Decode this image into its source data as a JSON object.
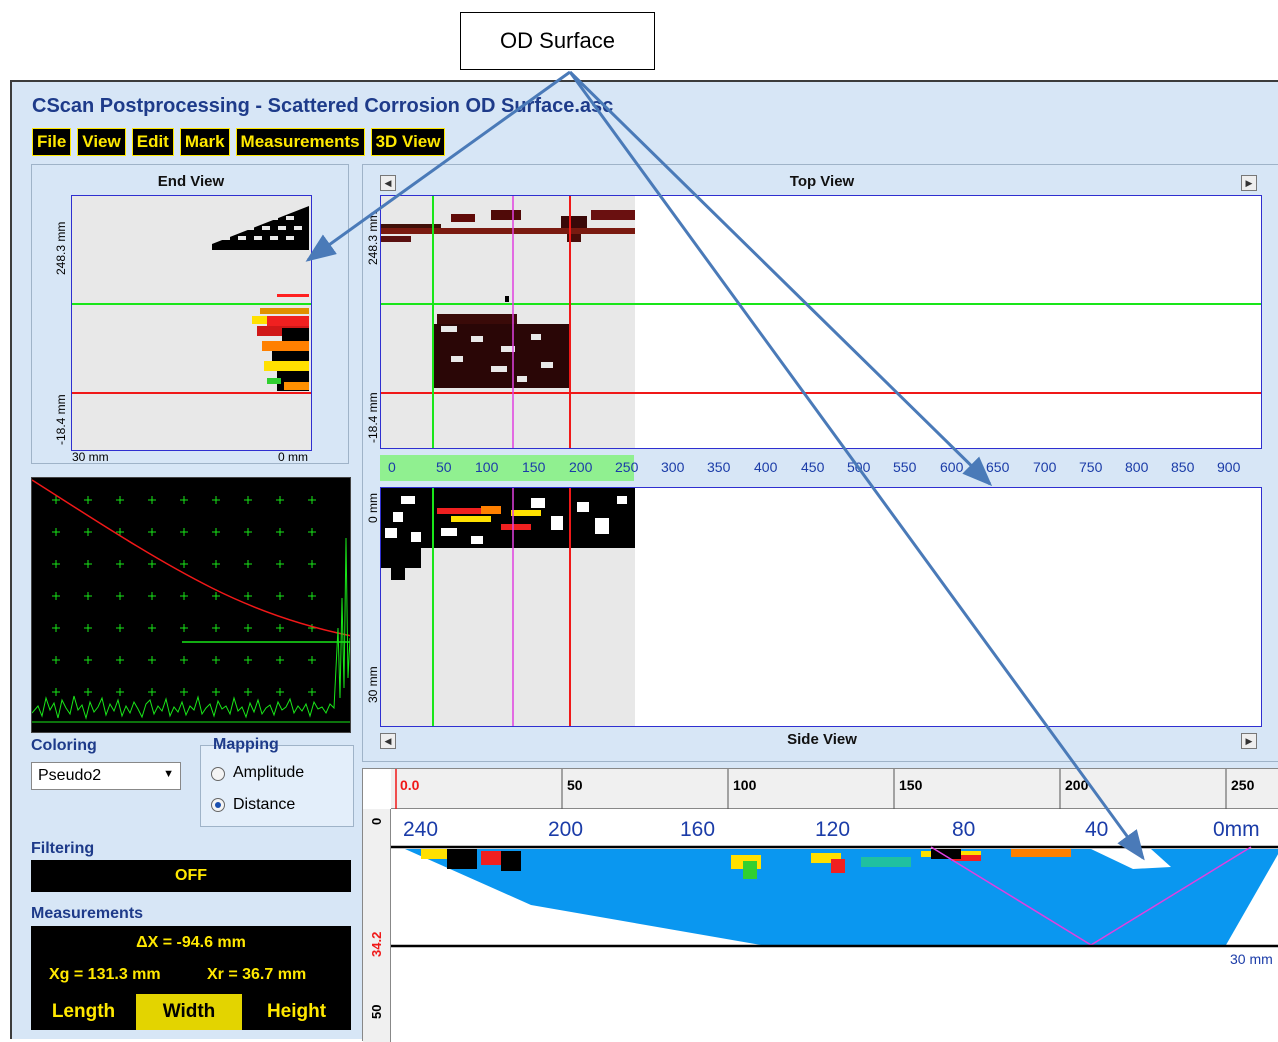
{
  "callout": {
    "text": "OD Surface"
  },
  "window": {
    "title": "CScan Postprocessing - Scattered Corrosion OD Surface.asc"
  },
  "menu": [
    "File",
    "View",
    "Edit",
    "Mark",
    "Measurements",
    "3D View"
  ],
  "end_view": {
    "title": "End View",
    "y_top": "248.3 mm",
    "y_bottom": "-18.4 mm",
    "x_left": "30 mm",
    "x_right": "0 mm"
  },
  "top_view": {
    "title": "Top View",
    "y_top": "248.3 mm",
    "y_bottom": "-18.4 mm",
    "x_ticks": [
      "0",
      "50",
      "100",
      "150",
      "200",
      "250",
      "300",
      "350",
      "400",
      "450",
      "500",
      "550",
      "600",
      "650",
      "700",
      "750",
      "800",
      "850",
      "900"
    ]
  },
  "side_view": {
    "title": "Side View",
    "y_top": "0 mm",
    "y_bottom": "30 mm"
  },
  "coloring": {
    "label": "Coloring",
    "selected": "Pseudo2"
  },
  "mapping": {
    "label": "Mapping",
    "options": [
      "Amplitude",
      "Distance"
    ],
    "selected": "Distance"
  },
  "filtering": {
    "label": "Filtering",
    "value": "OFF"
  },
  "measurements": {
    "label": "Measurements",
    "delta_x": "ΔX = -94.6 mm",
    "xg": "Xg = 131.3 mm",
    "xr": "Xr = 36.7 mm",
    "buttons": [
      "Length",
      "Width",
      "Height"
    ],
    "selected": "Width"
  },
  "bscan": {
    "ruler_top": [
      "0.0",
      "50",
      "100",
      "150",
      "200",
      "250"
    ],
    "ruler_left": [
      "0",
      "34.2",
      "50"
    ],
    "angle_labels": [
      "240",
      "200",
      "160",
      "120",
      "80",
      "40",
      "0mm"
    ],
    "depth_label": "30 mm"
  },
  "colors": {
    "accent_green": "#19e619",
    "accent_red": "#f01818",
    "magenta": "#e040e0",
    "menu_yellow": "#ffe800",
    "fill_blue": "#0a97f0"
  }
}
